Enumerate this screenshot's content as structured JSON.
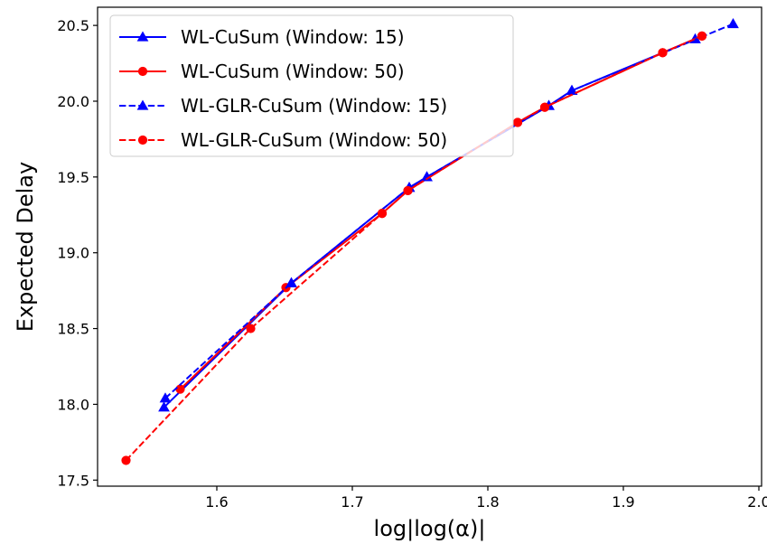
{
  "chart_data": {
    "type": "line",
    "xlabel": "log|log(α)|",
    "ylabel": "Expected Delay",
    "xlim": [
      1.512,
      2.002
    ],
    "ylim": [
      17.46,
      20.62
    ],
    "xticks": [
      1.6,
      1.7,
      1.8,
      1.9,
      2.0
    ],
    "xtick_labels": [
      "1.6",
      "1.7",
      "1.8",
      "1.9",
      "2.0"
    ],
    "yticks": [
      17.5,
      18.0,
      18.5,
      19.0,
      19.5,
      20.0,
      20.5
    ],
    "ytick_labels": [
      "17.5",
      "18.0",
      "18.5",
      "19.0",
      "19.5",
      "20.0",
      "20.5"
    ],
    "grid": false,
    "legend_position": "top-left",
    "series": [
      {
        "name": "WL-CuSum (Window: 15)",
        "color": "#0000ff",
        "linestyle": "solid",
        "marker": "triangle",
        "x": [
          1.561,
          1.655,
          1.742,
          1.755,
          1.845,
          1.862,
          1.953
        ],
        "y": [
          17.98,
          18.8,
          19.43,
          19.5,
          19.97,
          20.07,
          20.41
        ]
      },
      {
        "name": "WL-CuSum (Window: 50)",
        "color": "#ff0000",
        "linestyle": "solid",
        "marker": "circle",
        "x": [
          1.573,
          1.651,
          1.722,
          1.741,
          1.822,
          1.842,
          1.929,
          1.958
        ],
        "y": [
          18.1,
          18.77,
          19.26,
          19.41,
          19.86,
          19.96,
          20.32,
          20.43
        ]
      },
      {
        "name": "WL-GLR-CuSum (Window: 15)",
        "color": "#0000ff",
        "linestyle": "dashed",
        "marker": "triangle",
        "x": [
          1.562,
          1.655,
          1.742,
          1.755,
          1.845,
          1.862,
          1.981
        ],
        "y": [
          18.04,
          18.8,
          19.43,
          19.5,
          19.97,
          20.07,
          20.51
        ]
      },
      {
        "name": "WL-GLR-CuSum (Window: 50)",
        "color": "#ff0000",
        "linestyle": "dashed",
        "marker": "circle",
        "x": [
          1.533,
          1.625,
          1.722,
          1.741,
          1.822,
          1.842,
          1.929,
          1.958
        ],
        "y": [
          17.63,
          18.5,
          19.26,
          19.41,
          19.86,
          19.96,
          20.32,
          20.43
        ]
      }
    ]
  }
}
